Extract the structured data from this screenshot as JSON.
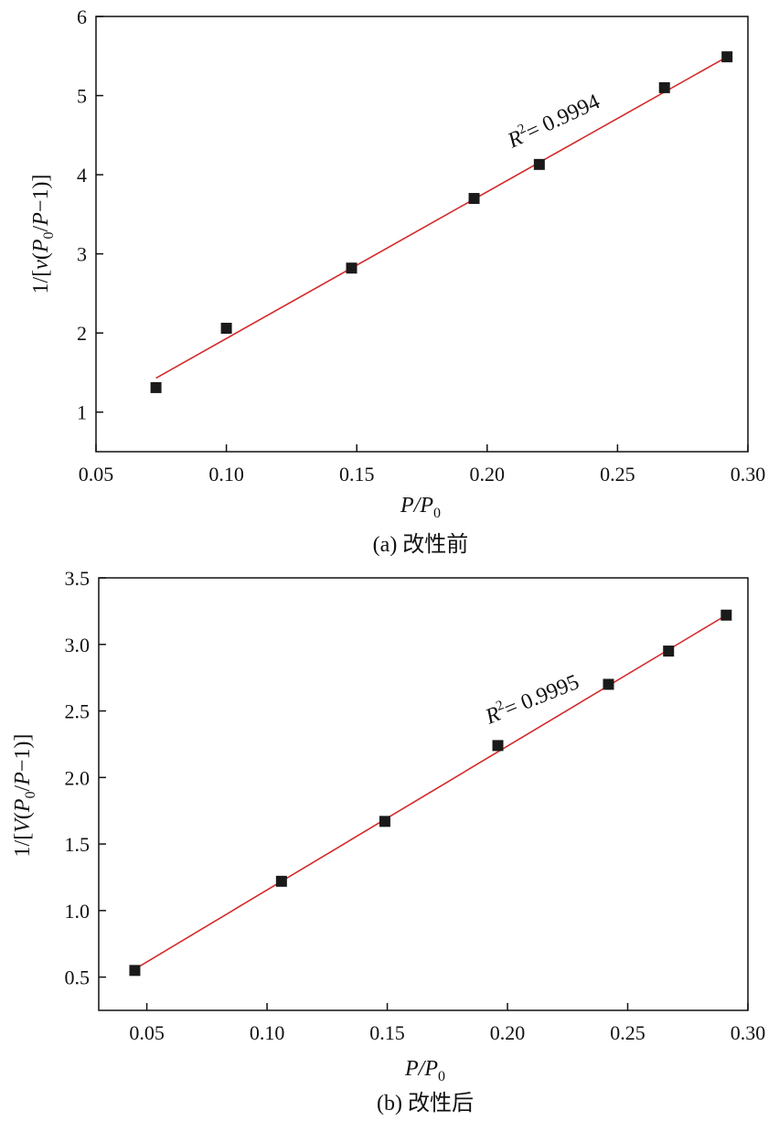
{
  "chart_data": [
    {
      "type": "scatter",
      "caption": "(a) 改性前",
      "xlabel_main": "P",
      "xlabel_slash": "/P",
      "xlabel_sub": "0",
      "ylabel": "1/[v(P0/P−1)]",
      "ylabel_parts": {
        "p1": "1/[",
        "p2": "v",
        "p3": "(",
        "p4": "P",
        "p5": "0",
        "p6": "/",
        "p7": "P",
        "p8": "−1)]"
      },
      "xlim": [
        0.05,
        0.3
      ],
      "ylim": [
        0.5,
        6.0
      ],
      "xticks": [
        0.05,
        0.1,
        0.15,
        0.2,
        0.25,
        0.3
      ],
      "xtick_labels": [
        "0.05",
        "0.10",
        "0.15",
        "0.20",
        "0.25",
        "0.30"
      ],
      "yticks": [
        1,
        2,
        3,
        4,
        5,
        6
      ],
      "ytick_labels": [
        "1",
        "2",
        "3",
        "4",
        "5",
        "6"
      ],
      "series": [
        {
          "x": [
            0.073,
            0.1,
            0.148,
            0.195,
            0.22,
            0.268,
            0.292
          ],
          "y": [
            1.31,
            2.06,
            2.82,
            3.7,
            4.13,
            5.1,
            5.49
          ]
        }
      ],
      "fit_line": {
        "x": [
          0.073,
          0.292
        ],
        "y": [
          1.43,
          5.49
        ]
      },
      "annotation": {
        "r": "R",
        "sup": "2",
        "rest": "= 0.9994"
      },
      "marker_color": "#1a1a1a",
      "line_color": "#d42a2a"
    },
    {
      "type": "scatter",
      "caption": "(b) 改性后",
      "xlabel_main": "P",
      "xlabel_slash": "/P",
      "xlabel_sub": "0",
      "ylabel": "1/[V(P0/P−1)]",
      "ylabel_parts": {
        "p1": "1/[",
        "p2": "V",
        "p3": "(",
        "p4": "P",
        "p5": "0",
        "p6": "/",
        "p7": "P",
        "p8": "−1)]"
      },
      "xlim": [
        0.03,
        0.3
      ],
      "ylim": [
        0.25,
        3.5
      ],
      "xticks": [
        0.05,
        0.1,
        0.15,
        0.2,
        0.25,
        0.3
      ],
      "xtick_labels": [
        "0.05",
        "0.10",
        "0.15",
        "0.20",
        "0.25",
        "0.30"
      ],
      "yticks": [
        0.5,
        1.0,
        1.5,
        2.0,
        2.5,
        3.0,
        3.5
      ],
      "ytick_labels": [
        "0.5",
        "1.0",
        "1.5",
        "2.0",
        "2.5",
        "3.0",
        "3.5"
      ],
      "series": [
        {
          "x": [
            0.045,
            0.106,
            0.149,
            0.196,
            0.242,
            0.267,
            0.291
          ],
          "y": [
            0.55,
            1.22,
            1.67,
            2.24,
            2.7,
            2.95,
            3.22
          ]
        }
      ],
      "fit_line": {
        "x": [
          0.045,
          0.291
        ],
        "y": [
          0.56,
          3.22
        ]
      },
      "annotation": {
        "r": "R",
        "sup": "2",
        "rest": "= 0.9995"
      },
      "marker_color": "#1a1a1a",
      "line_color": "#d42a2a"
    }
  ]
}
